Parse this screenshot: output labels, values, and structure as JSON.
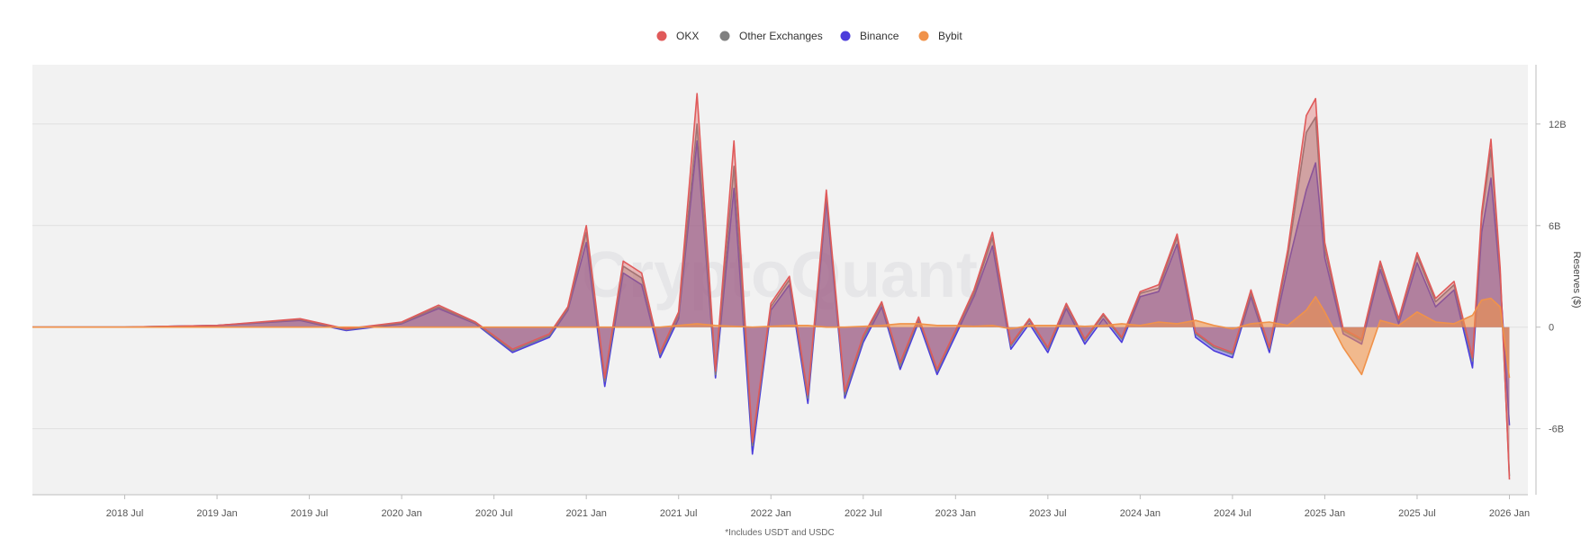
{
  "chart_data": {
    "type": "area",
    "title": "",
    "watermark": "CryptoQuant",
    "footnote": "*Includes USDT and USDC",
    "ylabel": "Reserves ($)",
    "xlabel": "",
    "ylim": [
      -9.9,
      15.5
    ],
    "y_ticks": [
      {
        "value": 12,
        "label": "12B"
      },
      {
        "value": 6,
        "label": "6B"
      },
      {
        "value": 0,
        "label": "0"
      },
      {
        "value": -6,
        "label": "-6B"
      }
    ],
    "xlim": [
      2018.0,
      2026.1
    ],
    "x_ticks": [
      {
        "value": 2018.5,
        "label": "2018 Jul"
      },
      {
        "value": 2019.0,
        "label": "2019 Jan"
      },
      {
        "value": 2019.5,
        "label": "2019 Jul"
      },
      {
        "value": 2020.0,
        "label": "2020 Jan"
      },
      {
        "value": 2020.5,
        "label": "2020 Jul"
      },
      {
        "value": 2021.0,
        "label": "2021 Jan"
      },
      {
        "value": 2021.5,
        "label": "2021 Jul"
      },
      {
        "value": 2022.0,
        "label": "2022 Jan"
      },
      {
        "value": 2022.5,
        "label": "2022 Jul"
      },
      {
        "value": 2023.0,
        "label": "2023 Jan"
      },
      {
        "value": 2023.5,
        "label": "2023 Jul"
      },
      {
        "value": 2024.0,
        "label": "2024 Jan"
      },
      {
        "value": 2024.5,
        "label": "2024 Jul"
      },
      {
        "value": 2025.0,
        "label": "2025 Jan"
      },
      {
        "value": 2025.5,
        "label": "2025 Jul"
      },
      {
        "value": 2026.0,
        "label": "2026 Jan"
      }
    ],
    "legend": [
      {
        "name": "OKX",
        "color": "#e05a5a"
      },
      {
        "name": "Other Exchanges",
        "color": "#808080"
      },
      {
        "name": "Binance",
        "color": "#4c3ddb"
      },
      {
        "name": "Bybit",
        "color": "#f0924a"
      }
    ],
    "x": [
      2018.0,
      2018.5,
      2019.0,
      2019.45,
      2019.7,
      2020.0,
      2020.2,
      2020.4,
      2020.6,
      2020.8,
      2020.9,
      2021.0,
      2021.1,
      2021.2,
      2021.3,
      2021.4,
      2021.5,
      2021.6,
      2021.7,
      2021.8,
      2021.9,
      2022.0,
      2022.1,
      2022.2,
      2022.3,
      2022.4,
      2022.5,
      2022.6,
      2022.7,
      2022.8,
      2022.9,
      2023.0,
      2023.1,
      2023.2,
      2023.3,
      2023.4,
      2023.5,
      2023.6,
      2023.7,
      2023.8,
      2023.9,
      2024.0,
      2024.1,
      2024.2,
      2024.3,
      2024.4,
      2024.5,
      2024.6,
      2024.7,
      2024.8,
      2024.9,
      2024.95,
      2025.0,
      2025.1,
      2025.2,
      2025.3,
      2025.4,
      2025.5,
      2025.6,
      2025.7,
      2025.8,
      2025.85,
      2025.9,
      2025.95,
      2026.0
    ],
    "series": [
      {
        "name": "Binance",
        "color": "#4c3ddb",
        "values": [
          0,
          0,
          0.1,
          0.4,
          -0.2,
          0.2,
          1.1,
          0.2,
          -1.5,
          -0.6,
          1.0,
          5.0,
          -3.5,
          3.2,
          2.5,
          -1.8,
          0.5,
          11.0,
          -3.0,
          8.2,
          -7.5,
          1.0,
          2.5,
          -4.5,
          7.5,
          -4.2,
          -0.9,
          1.2,
          -2.5,
          0.3,
          -2.8,
          -0.5,
          1.8,
          4.8,
          -1.3,
          0.2,
          -1.5,
          1.1,
          -1.0,
          0.5,
          -0.9,
          1.8,
          2.1,
          4.9,
          -0.6,
          -1.4,
          -1.8,
          1.8,
          -1.5,
          3.6,
          8.1,
          9.7,
          4.1,
          -0.4,
          -1.0,
          3.4,
          0.2,
          3.8,
          1.2,
          2.2,
          -2.4,
          5.6,
          8.8,
          2.8,
          -5.8
        ]
      },
      {
        "name": "Other Exchanges",
        "color": "#808080",
        "values": [
          0,
          0,
          0.1,
          0.45,
          -0.15,
          0.25,
          1.2,
          0.25,
          -1.4,
          -0.5,
          1.1,
          5.6,
          -3.2,
          3.6,
          2.9,
          -1.6,
          0.7,
          12.0,
          -2.8,
          9.5,
          -7.0,
          1.2,
          2.8,
          -4.2,
          7.9,
          -4.0,
          -0.7,
          1.4,
          -2.3,
          0.5,
          -2.6,
          -0.3,
          2.0,
          5.3,
          -1.1,
          0.4,
          -1.3,
          1.3,
          -0.8,
          0.7,
          -0.7,
          2.0,
          2.3,
          5.3,
          -0.4,
          -1.2,
          -1.6,
          2.0,
          -1.3,
          4.2,
          11.5,
          12.4,
          4.6,
          -0.2,
          -0.8,
          3.7,
          0.4,
          4.2,
          1.5,
          2.5,
          -2.0,
          6.5,
          10.5,
          3.2,
          -8.8
        ]
      },
      {
        "name": "OKX",
        "color": "#e05a5a",
        "values": [
          0,
          0,
          0.1,
          0.5,
          -0.1,
          0.3,
          1.3,
          0.3,
          -1.3,
          -0.4,
          1.2,
          6.0,
          -3.0,
          3.9,
          3.2,
          -1.5,
          0.9,
          13.8,
          -2.6,
          11.0,
          -6.8,
          1.4,
          3.0,
          -4.0,
          8.1,
          -3.8,
          -0.5,
          1.5,
          -2.1,
          0.6,
          -2.5,
          -0.2,
          2.2,
          5.6,
          -1.0,
          0.5,
          -1.2,
          1.4,
          -0.7,
          0.8,
          -0.6,
          2.1,
          2.5,
          5.5,
          -0.3,
          -1.1,
          -1.5,
          2.2,
          -1.2,
          4.6,
          12.5,
          13.5,
          5.0,
          -0.1,
          -0.7,
          3.9,
          0.5,
          4.4,
          1.7,
          2.7,
          -1.8,
          6.8,
          11.1,
          3.5,
          -9.0
        ]
      },
      {
        "name": "Bybit",
        "color": "#f0924a",
        "values": [
          0,
          0,
          0,
          0,
          0,
          0,
          0,
          0,
          0,
          0,
          0,
          0,
          0,
          0,
          0,
          0,
          0.1,
          0.2,
          0.1,
          0.05,
          0,
          0.05,
          0.1,
          0.1,
          0,
          0,
          0.05,
          0.1,
          0.2,
          0.2,
          0.1,
          0.1,
          0.05,
          0.1,
          -0.1,
          0.1,
          0.1,
          0.1,
          0.05,
          0.1,
          0.2,
          0.1,
          0.3,
          0.2,
          0.4,
          0.1,
          -0.1,
          0.2,
          0.3,
          0.1,
          1.0,
          1.8,
          0.9,
          -1.2,
          -2.8,
          0.4,
          0.1,
          0.9,
          0.3,
          0.2,
          0.7,
          1.6,
          1.7,
          1.2,
          -3.0
        ]
      }
    ]
  }
}
